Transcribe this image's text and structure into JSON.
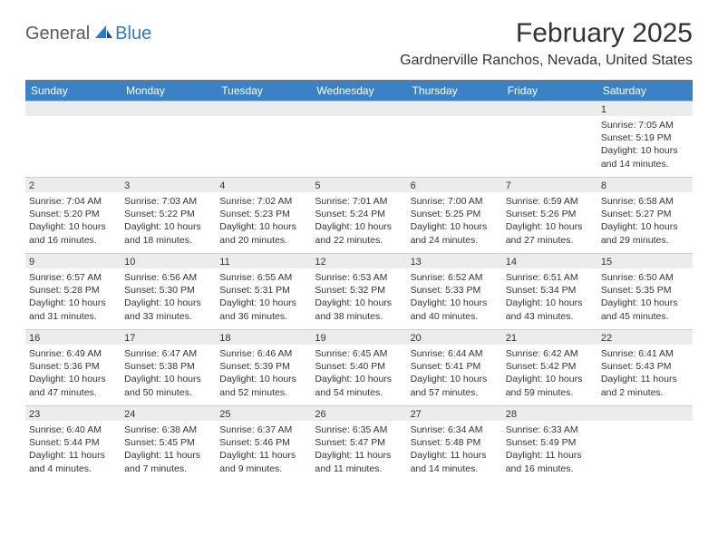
{
  "brand": {
    "part1": "General",
    "part2": "Blue"
  },
  "title": "February 2025",
  "location": "Gardnerville Ranchos, Nevada, United States",
  "colors": {
    "header_bg": "#3b82c4",
    "header_text": "#ffffff",
    "daynum_bg": "#ececec",
    "rule": "#7a7a7a",
    "text": "#333333",
    "brand_gray": "#5a5a5a",
    "brand_blue": "#2f7bbf"
  },
  "day_names": [
    "Sunday",
    "Monday",
    "Tuesday",
    "Wednesday",
    "Thursday",
    "Friday",
    "Saturday"
  ],
  "weeks": [
    [
      {
        "n": "",
        "empty": true
      },
      {
        "n": "",
        "empty": true
      },
      {
        "n": "",
        "empty": true
      },
      {
        "n": "",
        "empty": true
      },
      {
        "n": "",
        "empty": true
      },
      {
        "n": "",
        "empty": true
      },
      {
        "n": "1",
        "sunrise": "Sunrise: 7:05 AM",
        "sunset": "Sunset: 5:19 PM",
        "daylight": "Daylight: 10 hours and 14 minutes."
      }
    ],
    [
      {
        "n": "2",
        "sunrise": "Sunrise: 7:04 AM",
        "sunset": "Sunset: 5:20 PM",
        "daylight": "Daylight: 10 hours and 16 minutes."
      },
      {
        "n": "3",
        "sunrise": "Sunrise: 7:03 AM",
        "sunset": "Sunset: 5:22 PM",
        "daylight": "Daylight: 10 hours and 18 minutes."
      },
      {
        "n": "4",
        "sunrise": "Sunrise: 7:02 AM",
        "sunset": "Sunset: 5:23 PM",
        "daylight": "Daylight: 10 hours and 20 minutes."
      },
      {
        "n": "5",
        "sunrise": "Sunrise: 7:01 AM",
        "sunset": "Sunset: 5:24 PM",
        "daylight": "Daylight: 10 hours and 22 minutes."
      },
      {
        "n": "6",
        "sunrise": "Sunrise: 7:00 AM",
        "sunset": "Sunset: 5:25 PM",
        "daylight": "Daylight: 10 hours and 24 minutes."
      },
      {
        "n": "7",
        "sunrise": "Sunrise: 6:59 AM",
        "sunset": "Sunset: 5:26 PM",
        "daylight": "Daylight: 10 hours and 27 minutes."
      },
      {
        "n": "8",
        "sunrise": "Sunrise: 6:58 AM",
        "sunset": "Sunset: 5:27 PM",
        "daylight": "Daylight: 10 hours and 29 minutes."
      }
    ],
    [
      {
        "n": "9",
        "sunrise": "Sunrise: 6:57 AM",
        "sunset": "Sunset: 5:28 PM",
        "daylight": "Daylight: 10 hours and 31 minutes."
      },
      {
        "n": "10",
        "sunrise": "Sunrise: 6:56 AM",
        "sunset": "Sunset: 5:30 PM",
        "daylight": "Daylight: 10 hours and 33 minutes."
      },
      {
        "n": "11",
        "sunrise": "Sunrise: 6:55 AM",
        "sunset": "Sunset: 5:31 PM",
        "daylight": "Daylight: 10 hours and 36 minutes."
      },
      {
        "n": "12",
        "sunrise": "Sunrise: 6:53 AM",
        "sunset": "Sunset: 5:32 PM",
        "daylight": "Daylight: 10 hours and 38 minutes."
      },
      {
        "n": "13",
        "sunrise": "Sunrise: 6:52 AM",
        "sunset": "Sunset: 5:33 PM",
        "daylight": "Daylight: 10 hours and 40 minutes."
      },
      {
        "n": "14",
        "sunrise": "Sunrise: 6:51 AM",
        "sunset": "Sunset: 5:34 PM",
        "daylight": "Daylight: 10 hours and 43 minutes."
      },
      {
        "n": "15",
        "sunrise": "Sunrise: 6:50 AM",
        "sunset": "Sunset: 5:35 PM",
        "daylight": "Daylight: 10 hours and 45 minutes."
      }
    ],
    [
      {
        "n": "16",
        "sunrise": "Sunrise: 6:49 AM",
        "sunset": "Sunset: 5:36 PM",
        "daylight": "Daylight: 10 hours and 47 minutes."
      },
      {
        "n": "17",
        "sunrise": "Sunrise: 6:47 AM",
        "sunset": "Sunset: 5:38 PM",
        "daylight": "Daylight: 10 hours and 50 minutes."
      },
      {
        "n": "18",
        "sunrise": "Sunrise: 6:46 AM",
        "sunset": "Sunset: 5:39 PM",
        "daylight": "Daylight: 10 hours and 52 minutes."
      },
      {
        "n": "19",
        "sunrise": "Sunrise: 6:45 AM",
        "sunset": "Sunset: 5:40 PM",
        "daylight": "Daylight: 10 hours and 54 minutes."
      },
      {
        "n": "20",
        "sunrise": "Sunrise: 6:44 AM",
        "sunset": "Sunset: 5:41 PM",
        "daylight": "Daylight: 10 hours and 57 minutes."
      },
      {
        "n": "21",
        "sunrise": "Sunrise: 6:42 AM",
        "sunset": "Sunset: 5:42 PM",
        "daylight": "Daylight: 10 hours and 59 minutes."
      },
      {
        "n": "22",
        "sunrise": "Sunrise: 6:41 AM",
        "sunset": "Sunset: 5:43 PM",
        "daylight": "Daylight: 11 hours and 2 minutes."
      }
    ],
    [
      {
        "n": "23",
        "sunrise": "Sunrise: 6:40 AM",
        "sunset": "Sunset: 5:44 PM",
        "daylight": "Daylight: 11 hours and 4 minutes."
      },
      {
        "n": "24",
        "sunrise": "Sunrise: 6:38 AM",
        "sunset": "Sunset: 5:45 PM",
        "daylight": "Daylight: 11 hours and 7 minutes."
      },
      {
        "n": "25",
        "sunrise": "Sunrise: 6:37 AM",
        "sunset": "Sunset: 5:46 PM",
        "daylight": "Daylight: 11 hours and 9 minutes."
      },
      {
        "n": "26",
        "sunrise": "Sunrise: 6:35 AM",
        "sunset": "Sunset: 5:47 PM",
        "daylight": "Daylight: 11 hours and 11 minutes."
      },
      {
        "n": "27",
        "sunrise": "Sunrise: 6:34 AM",
        "sunset": "Sunset: 5:48 PM",
        "daylight": "Daylight: 11 hours and 14 minutes."
      },
      {
        "n": "28",
        "sunrise": "Sunrise: 6:33 AM",
        "sunset": "Sunset: 5:49 PM",
        "daylight": "Daylight: 11 hours and 16 minutes."
      },
      {
        "n": "",
        "empty": true
      }
    ]
  ]
}
